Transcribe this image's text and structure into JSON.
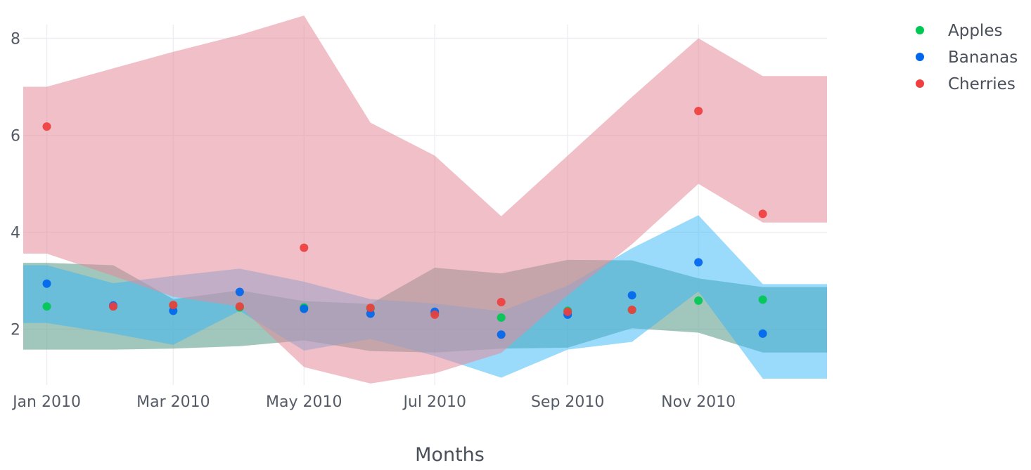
{
  "chart_data": {
    "type": "scatter",
    "title": "",
    "xlabel": "Months",
    "ylabel": "",
    "x": [
      "2010-01",
      "2010-02",
      "2010-03",
      "2010-04",
      "2010-05",
      "2010-06",
      "2010-07",
      "2010-08",
      "2010-09",
      "2010-10",
      "2010-11",
      "2010-12"
    ],
    "xlim": [
      "2009-12-21",
      "2010-12-31"
    ],
    "ylim": [
      0.85,
      8.5
    ],
    "x_ticks": [
      {
        "date": "2010-01-01",
        "label": "Jan 2010"
      },
      {
        "date": "2010-03-01",
        "label": "Mar 2010"
      },
      {
        "date": "2010-05-01",
        "label": "May 2010"
      },
      {
        "date": "2010-07-01",
        "label": "Jul 2010"
      },
      {
        "date": "2010-09-01",
        "label": "Sep 2010"
      },
      {
        "date": "2010-11-01",
        "label": "Nov 2010"
      }
    ],
    "y_ticks": [
      {
        "value": 2,
        "label": "2"
      },
      {
        "value": 4,
        "label": "4"
      },
      {
        "value": 6,
        "label": "6"
      },
      {
        "value": 8,
        "label": "8"
      }
    ],
    "grid": true,
    "legend_position": "top-right",
    "series": [
      {
        "name": "Apples",
        "color": "#00c853",
        "band_color": "#6fa898",
        "band_opacity": 0.65,
        "values": [
          2.47,
          2.47,
          2.49,
          2.45,
          2.45,
          2.43,
          2.32,
          2.24,
          2.38,
          2.4,
          2.59,
          2.61
        ],
        "upper": [
          3.37,
          3.32,
          2.62,
          2.8,
          2.58,
          2.52,
          3.27,
          3.15,
          3.43,
          3.42,
          3.05,
          2.87
        ],
        "lower": [
          1.58,
          1.58,
          1.6,
          1.65,
          1.77,
          1.55,
          1.52,
          1.6,
          1.62,
          2.02,
          1.93,
          1.52
        ]
      },
      {
        "name": "Bananas",
        "color": "#0066ee",
        "band_color": "#35b6f5",
        "band_opacity": 0.5,
        "values": [
          2.94,
          2.49,
          2.38,
          2.77,
          2.42,
          2.32,
          2.36,
          1.89,
          2.3,
          2.7,
          3.38,
          1.91
        ],
        "upper": [
          3.32,
          2.95,
          3.1,
          3.25,
          2.98,
          2.62,
          2.53,
          2.37,
          2.9,
          3.67,
          4.35,
          2.93
        ],
        "lower": [
          2.13,
          1.91,
          1.68,
          2.38,
          1.56,
          1.8,
          1.45,
          1.0,
          1.58,
          1.74,
          2.78,
          0.98
        ]
      },
      {
        "name": "Cherries",
        "color": "#f03e3e",
        "band_color": "#e48a9a",
        "band_opacity": 0.55,
        "values": [
          6.18,
          2.47,
          2.5,
          2.47,
          3.68,
          2.44,
          2.3,
          2.56,
          2.36,
          2.4,
          6.5,
          4.38
        ],
        "upper": [
          7.0,
          7.38,
          7.72,
          8.07,
          8.47,
          6.26,
          5.58,
          4.33,
          5.58,
          6.79,
          8.0,
          7.22
        ],
        "lower": [
          3.56,
          3.1,
          2.67,
          2.47,
          1.22,
          0.88,
          1.09,
          1.51,
          2.7,
          3.75,
          5.0,
          4.2
        ]
      }
    ]
  }
}
